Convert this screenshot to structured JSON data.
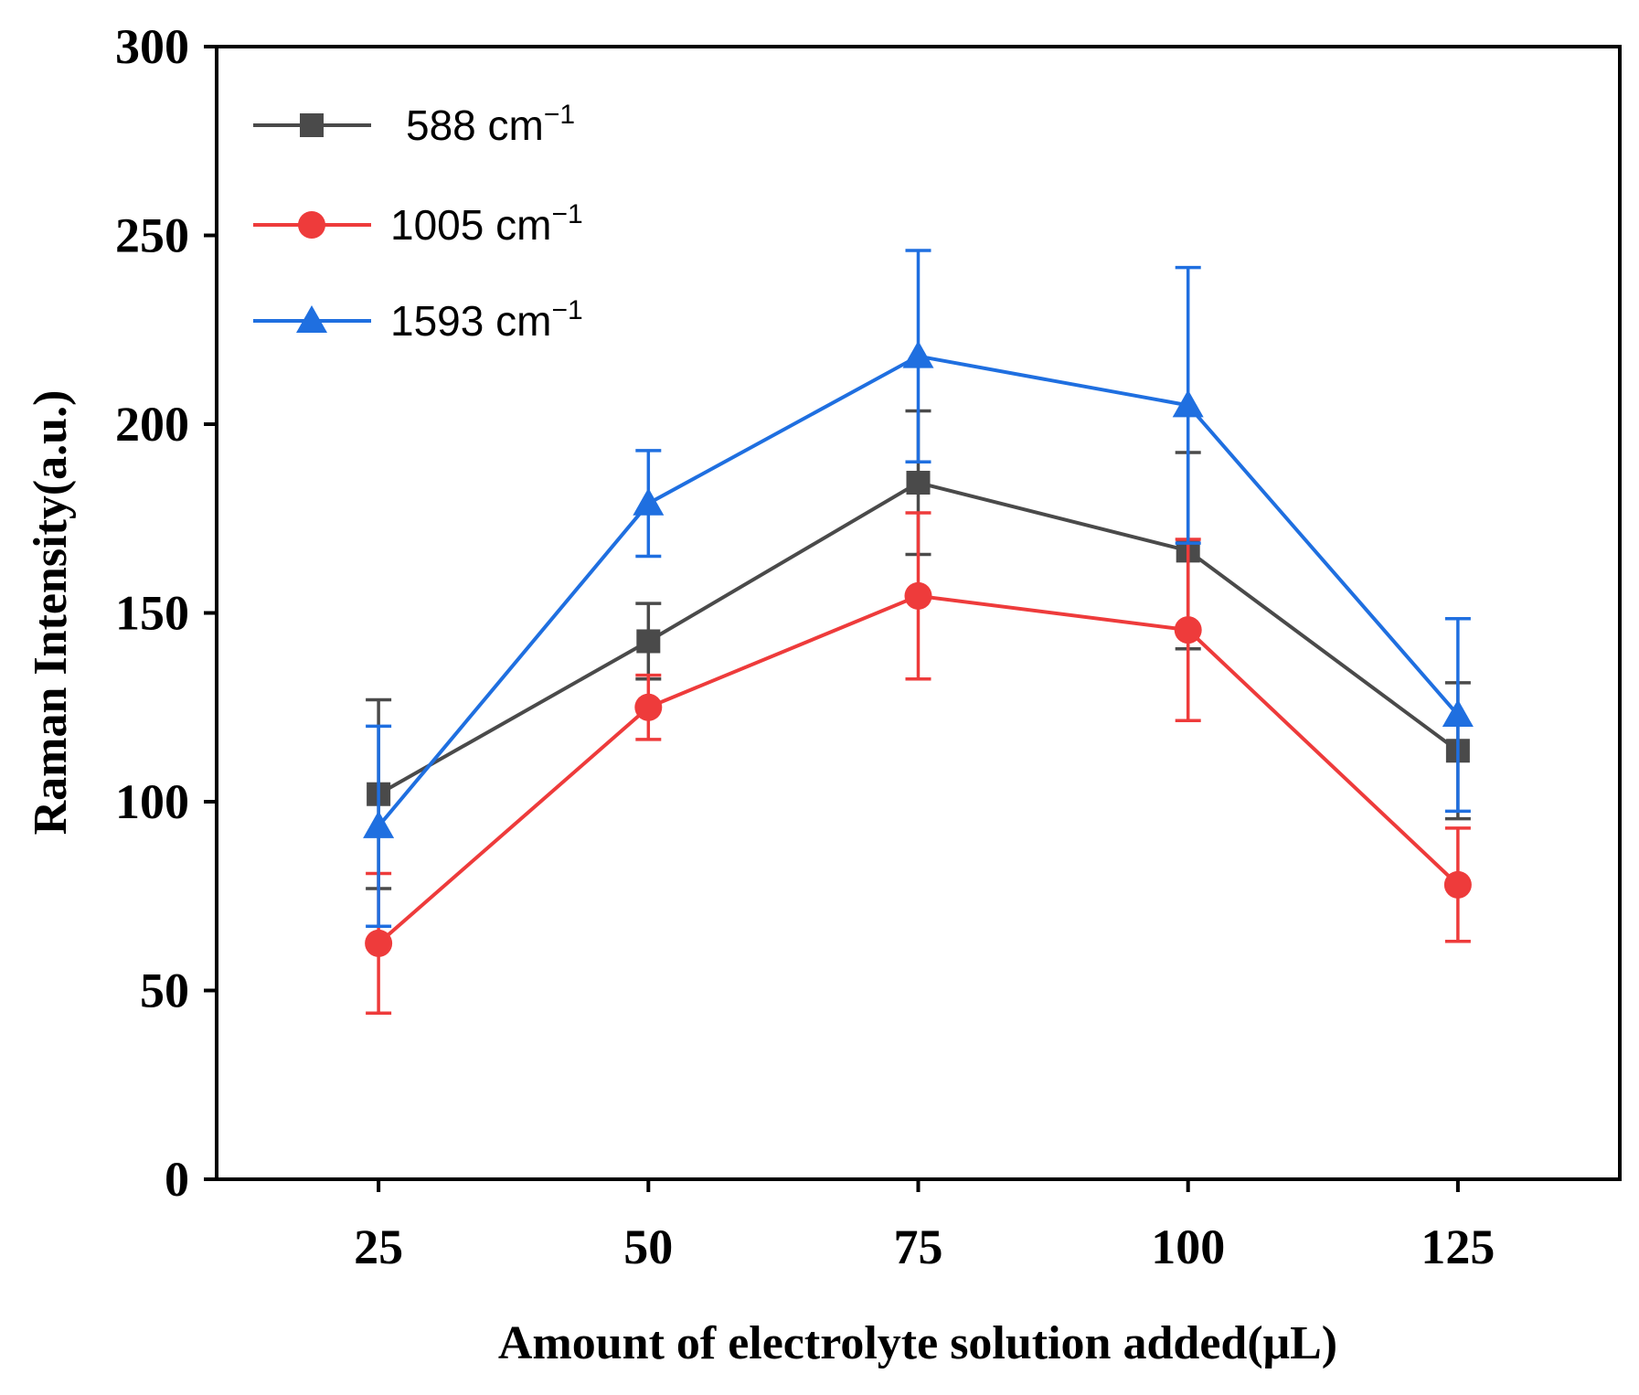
{
  "chart_data": {
    "type": "line",
    "title": "",
    "xlabel": "Amount of electrolyte solution added(μL)",
    "ylabel": "Raman Intensity(a.u.)",
    "xlim": [
      10,
      140
    ],
    "ylim": [
      0,
      300
    ],
    "x": [
      25,
      50,
      75,
      100,
      125
    ],
    "xticks": [
      25,
      50,
      75,
      100,
      125
    ],
    "yticks": [
      0,
      50,
      100,
      150,
      200,
      250,
      300
    ],
    "grid": false,
    "legend_position": "top-left",
    "series": [
      {
        "name": "588 cm⁻¹",
        "label_base": "588 cm",
        "label_sup": "−1",
        "color": "#4a4a4a",
        "marker": "square",
        "values": [
          102,
          142.5,
          184.5,
          166.5,
          113.5
        ],
        "errors": [
          25,
          10,
          19,
          26,
          18
        ]
      },
      {
        "name": "1005 cm⁻¹",
        "label_base": "1005 cm",
        "label_sup": "−1",
        "color": "#ee3b3b",
        "marker": "circle",
        "values": [
          62.5,
          125,
          154.5,
          145.5,
          78
        ],
        "errors": [
          18.5,
          8.5,
          22,
          24,
          15
        ]
      },
      {
        "name": "1593 cm⁻¹",
        "label_base": "1593 cm",
        "label_sup": "−1",
        "color": "#1f6fe0",
        "marker": "triangle",
        "values": [
          93.5,
          179,
          218,
          205,
          123
        ],
        "errors": [
          26.5,
          14,
          28,
          36.5,
          25.5
        ]
      }
    ]
  }
}
